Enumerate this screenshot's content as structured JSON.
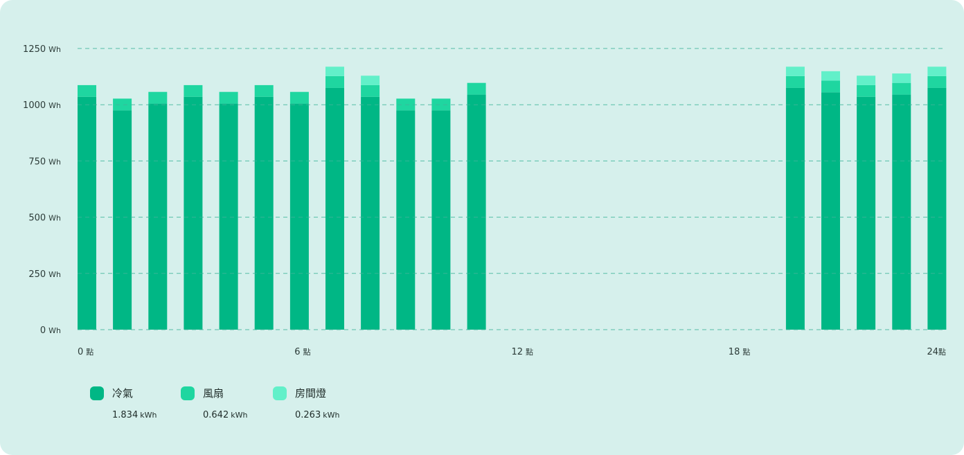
{
  "chart_data": {
    "type": "bar",
    "stacked": true,
    "categories": [
      "0",
      "1",
      "2",
      "3",
      "4",
      "5",
      "6",
      "7",
      "8",
      "9",
      "10",
      "11",
      "12",
      "13",
      "14",
      "15",
      "16",
      "17",
      "18",
      "19",
      "20",
      "21",
      "22",
      "23",
      "24"
    ],
    "series": [
      {
        "name": "冷氣",
        "color": "#00b785",
        "values": [
          1035,
          975,
          1005,
          1035,
          1005,
          1035,
          1005,
          1075,
          1035,
          975,
          975,
          1045,
          0,
          0,
          0,
          0,
          0,
          0,
          0,
          0,
          1075,
          1055,
          1035,
          1045,
          1075
        ]
      },
      {
        "name": "風扇",
        "color": "#1fd6a0",
        "values": [
          52,
          52,
          52,
          52,
          52,
          52,
          52,
          52,
          52,
          52,
          52,
          52,
          0,
          0,
          0,
          0,
          0,
          0,
          0,
          0,
          52,
          52,
          52,
          52,
          52
        ]
      },
      {
        "name": "房間燈",
        "color": "#62f0c9",
        "values": [
          0,
          0,
          0,
          0,
          0,
          0,
          0,
          42,
          42,
          0,
          0,
          0,
          0,
          0,
          0,
          0,
          0,
          0,
          0,
          0,
          42,
          42,
          42,
          42,
          42
        ]
      }
    ],
    "ylim": [
      0,
      1250
    ],
    "yticks": [
      0,
      250,
      500,
      750,
      1000,
      1250
    ],
    "ytick_unit": "Wh",
    "xticks": [
      {
        "at": 0,
        "num": "0",
        "suffix": "點"
      },
      {
        "at": 6,
        "num": "6",
        "suffix": "點"
      },
      {
        "at": 12,
        "num": "12",
        "suffix": "點"
      },
      {
        "at": 18,
        "num": "18",
        "suffix": "點"
      },
      {
        "at": 24,
        "num": "24",
        "suffix": "點"
      }
    ],
    "grid": true
  },
  "legend": {
    "items": [
      {
        "name": "冷氣",
        "value": "1.834",
        "unit": "kWh",
        "color": "#00b785"
      },
      {
        "name": "風扇",
        "value": "0.642",
        "unit": "kWh",
        "color": "#1fd6a0"
      },
      {
        "name": "房間燈",
        "value": "0.263",
        "unit": "kWh",
        "color": "#62f0c9"
      }
    ]
  }
}
